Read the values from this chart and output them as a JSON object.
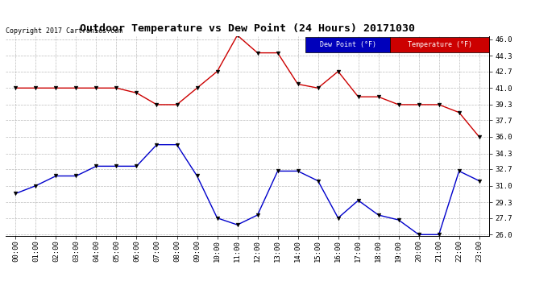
{
  "title": "Outdoor Temperature vs Dew Point (24 Hours) 20171030",
  "copyright": "Copyright 2017 Cartronics.com",
  "background_color": "#ffffff",
  "grid_color": "#aaaaaa",
  "x_labels": [
    "00:00",
    "01:00",
    "02:00",
    "03:00",
    "04:00",
    "05:00",
    "06:00",
    "07:00",
    "08:00",
    "09:00",
    "10:00",
    "11:00",
    "12:00",
    "13:00",
    "14:00",
    "15:00",
    "16:00",
    "17:00",
    "18:00",
    "19:00",
    "20:00",
    "21:00",
    "22:00",
    "23:00"
  ],
  "temperature": [
    41.0,
    41.0,
    41.0,
    41.0,
    41.0,
    41.0,
    40.5,
    39.3,
    39.3,
    41.0,
    42.7,
    46.4,
    44.6,
    44.6,
    41.4,
    41.0,
    42.7,
    40.1,
    40.1,
    39.3,
    39.3,
    39.3,
    38.5,
    36.0
  ],
  "dew_point": [
    30.2,
    31.0,
    32.0,
    32.0,
    33.0,
    33.0,
    33.0,
    35.2,
    35.2,
    32.0,
    27.7,
    27.0,
    28.0,
    32.5,
    32.5,
    31.5,
    27.7,
    29.5,
    28.0,
    27.5,
    26.0,
    26.0,
    32.5,
    31.5
  ],
  "temp_color": "#cc0000",
  "dew_color": "#0000cc",
  "marker": "v",
  "marker_size": 4,
  "ylim_min": 26.0,
  "ylim_max": 46.0,
  "yticks": [
    26.0,
    27.7,
    29.3,
    31.0,
    32.7,
    34.3,
    36.0,
    37.7,
    39.3,
    41.0,
    42.7,
    44.3,
    46.0
  ],
  "legend_dew_bg": "#0000bb",
  "legend_temp_bg": "#cc0000",
  "legend_text_color": "#ffffff"
}
